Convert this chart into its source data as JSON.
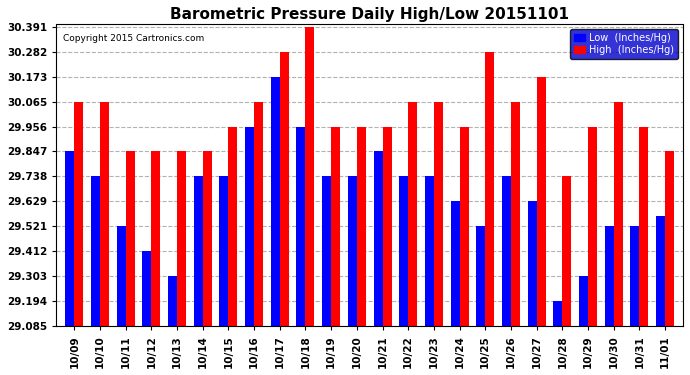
{
  "title": "Barometric Pressure Daily High/Low 20151101",
  "copyright": "Copyright 2015 Cartronics.com",
  "categories": [
    "10/09",
    "10/10",
    "10/11",
    "10/12",
    "10/13",
    "10/14",
    "10/15",
    "10/16",
    "10/17",
    "10/18",
    "10/19",
    "10/20",
    "10/21",
    "10/22",
    "10/23",
    "10/24",
    "10/25",
    "10/26",
    "10/27",
    "10/28",
    "10/29",
    "10/30",
    "10/31",
    "11/01"
  ],
  "low_values": [
    29.847,
    29.738,
    29.521,
    29.412,
    29.303,
    29.738,
    29.738,
    29.956,
    30.173,
    29.956,
    29.738,
    29.738,
    29.847,
    29.738,
    29.738,
    29.629,
    29.521,
    29.738,
    29.629,
    29.194,
    29.303,
    29.521,
    29.521,
    29.565
  ],
  "high_values": [
    30.065,
    30.065,
    29.847,
    29.847,
    29.847,
    29.847,
    29.956,
    30.065,
    30.282,
    30.391,
    29.956,
    29.956,
    29.956,
    30.065,
    30.065,
    29.956,
    30.282,
    30.065,
    30.173,
    29.738,
    29.956,
    30.065,
    29.956,
    29.847
  ],
  "yticks": [
    29.085,
    29.194,
    29.303,
    29.412,
    29.521,
    29.629,
    29.738,
    29.847,
    29.956,
    30.065,
    30.173,
    30.282,
    30.391
  ],
  "ymin": 29.085,
  "ymax": 30.391,
  "bar_width": 0.35,
  "low_color": "#0000ff",
  "high_color": "#ff0000",
  "bg_color": "#ffffff",
  "grid_color": "#aaaaaa",
  "title_fontsize": 11,
  "tick_fontsize": 7.5,
  "legend_low_label": "Low  (Inches/Hg)",
  "legend_high_label": "High  (Inches/Hg)"
}
